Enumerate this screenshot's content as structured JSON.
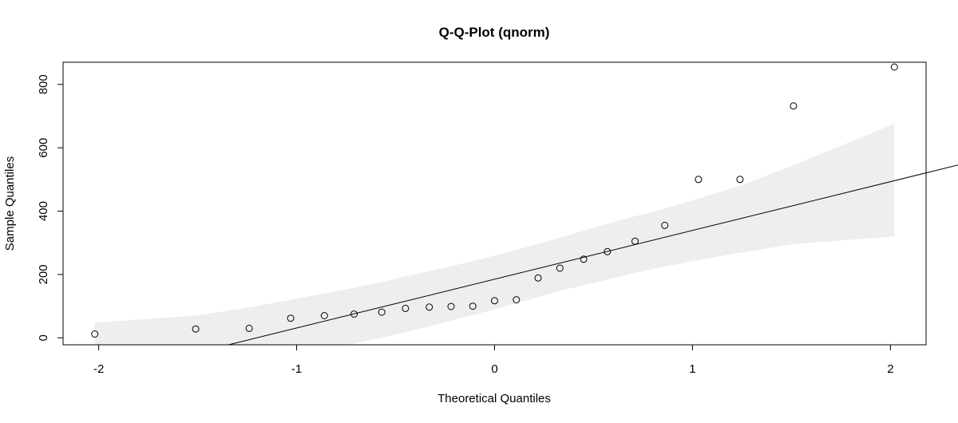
{
  "chart_data": {
    "type": "scatter",
    "title": "Q-Q-Plot (qnorm)",
    "xlabel": "Theoretical Quantiles",
    "ylabel": "Sample Quantiles",
    "xlim": [
      -2.18,
      2.18
    ],
    "ylim": [
      -22,
      870
    ],
    "x_ticks": [
      -2,
      -1,
      0,
      1,
      2
    ],
    "y_ticks": [
      0,
      200,
      400,
      600,
      800
    ],
    "grid": false,
    "legend": "none",
    "colors": {
      "points": "#000000",
      "line": "#000000",
      "band": "#eeeeee",
      "frame": "#000000"
    },
    "points": [
      {
        "x": -2.02,
        "y": 12
      },
      {
        "x": -1.51,
        "y": 28
      },
      {
        "x": -1.24,
        "y": 30
      },
      {
        "x": -1.03,
        "y": 62
      },
      {
        "x": -0.86,
        "y": 70
      },
      {
        "x": -0.71,
        "y": 75
      },
      {
        "x": -0.57,
        "y": 81
      },
      {
        "x": -0.45,
        "y": 93
      },
      {
        "x": -0.33,
        "y": 97
      },
      {
        "x": -0.22,
        "y": 99
      },
      {
        "x": -0.11,
        "y": 100
      },
      {
        "x": 0.0,
        "y": 117
      },
      {
        "x": 0.11,
        "y": 120
      },
      {
        "x": 0.22,
        "y": 189
      },
      {
        "x": 0.33,
        "y": 220
      },
      {
        "x": 0.45,
        "y": 248
      },
      {
        "x": 0.57,
        "y": 272
      },
      {
        "x": 0.71,
        "y": 305
      },
      {
        "x": 0.86,
        "y": 355
      },
      {
        "x": 1.03,
        "y": 500
      },
      {
        "x": 1.24,
        "y": 500
      },
      {
        "x": 1.51,
        "y": 732
      },
      {
        "x": 2.02,
        "y": 855
      }
    ],
    "reference_line": {
      "intercept": 185,
      "slope": 154
    },
    "confidence_band": {
      "x": [
        -2.02,
        -1.51,
        -1.24,
        -1.03,
        -0.86,
        -0.71,
        -0.57,
        -0.45,
        -0.33,
        -0.22,
        -0.11,
        0.0,
        0.11,
        0.22,
        0.33,
        0.45,
        0.57,
        0.71,
        0.86,
        1.03,
        1.24,
        1.51,
        2.02
      ],
      "upper": [
        48,
        70,
        96,
        120,
        140,
        158,
        176,
        194,
        210,
        226,
        242,
        260,
        278,
        296,
        316,
        338,
        360,
        384,
        408,
        440,
        480,
        545,
        676
      ],
      "lower": [
        -120,
        -100,
        -78,
        -55,
        -35,
        -18,
        0,
        18,
        36,
        54,
        72,
        90,
        110,
        128,
        148,
        166,
        184,
        205,
        225,
        246,
        268,
        296,
        320
      ]
    }
  }
}
